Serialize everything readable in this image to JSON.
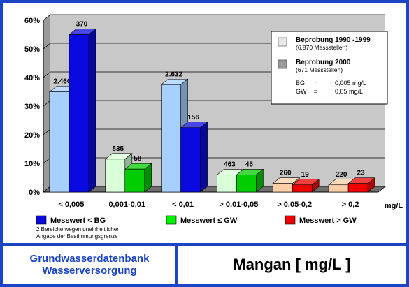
{
  "chart_data": {
    "type": "bar",
    "categories": [
      "< 0,005",
      "0,001-0,01",
      "< 0,01",
      "> 0,01-0,05",
      "> 0,05-0,2",
      "> 0,2"
    ],
    "x_unit": "mg/L",
    "ylim": [
      0,
      60
    ],
    "y_ticks": [
      "0%",
      "10%",
      "20%",
      "30%",
      "40%",
      "50%",
      "60%"
    ],
    "grid": true,
    "series": [
      {
        "name": "Beprobung 1990 -1999",
        "sub": "(6.870 Messstellen)",
        "values": [
          35,
          11.5,
          37.5,
          6,
          3,
          2.5
        ],
        "labels": [
          "2.460",
          "835",
          "2.632",
          "463",
          "260",
          "220"
        ]
      },
      {
        "name": "Beprobung 2000",
        "sub": "(671 Messstellen)",
        "values": [
          55,
          8,
          22.5,
          6,
          2.5,
          3
        ],
        "labels": [
          "370",
          "58",
          "156",
          "45",
          "19",
          "23"
        ]
      }
    ],
    "bar_colors": {
      "period1": [
        "#a8d0ff",
        "#d8ffd8",
        "#a8d0ff",
        "#d8ffd8",
        "#ffd0a8",
        "#ffd0a8"
      ],
      "period2": [
        "#0a0ae0",
        "#00cc00",
        "#0a0ae0",
        "#00cc00",
        "#ee0000",
        "#ee0000"
      ]
    },
    "legend_box": {
      "entries": [
        "Beprobung 1990 -1999",
        "(6.870 Messstellen)",
        "Beprobung 2000",
        "(671 Messstellen)"
      ],
      "abbrev": [
        {
          "key": "BG",
          "eq": "=",
          "value": "0,005 mg/L"
        },
        {
          "key": "GW",
          "eq": "=",
          "value": "0,05 mg/L"
        }
      ]
    },
    "color_legend": [
      {
        "label": "Messwert < BG",
        "color": "#0a0ae0"
      },
      {
        "label": "Messwert ≤ GW",
        "color": "#00ee00"
      },
      {
        "label": "Messwert > GW",
        "color": "#ee0000"
      }
    ],
    "note_lines": [
      "2 Bereiche wegen uneinheitlicher",
      "Angabe der Bestimmungsgrenze"
    ]
  },
  "footer": {
    "left_line1": "Grundwasserdatenbank",
    "left_line2": "Wasserversorgung",
    "right_title": "Mangan [ mg/L ]"
  }
}
